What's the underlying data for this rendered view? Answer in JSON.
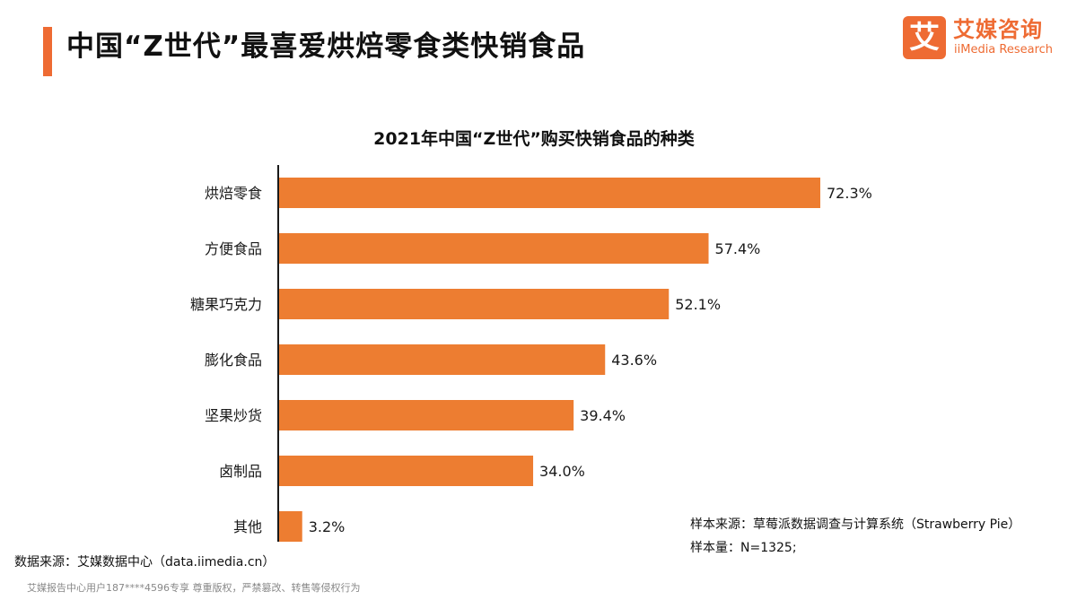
{
  "header": {
    "title": "中国“Z世代”最喜爱烘焙零食类快销食品",
    "logo_mark": "艾",
    "logo_cn": "艾媒咨询",
    "logo_en": "iiMedia Research"
  },
  "colors": {
    "accent": "#EE6B33",
    "bar": "#ED7D31",
    "axis": "#1a1a1a",
    "logo": "#EE6B33"
  },
  "chart_data": {
    "type": "bar",
    "orientation": "horizontal",
    "title": "2021年中国“Z世代”购买快销食品的种类",
    "categories": [
      "烘焙零食",
      "方便食品",
      "糖果巧克力",
      "膨化食品",
      "坚果炒货",
      "卤制品",
      "其他"
    ],
    "values": [
      72.3,
      57.4,
      52.1,
      43.6,
      39.4,
      34.0,
      3.2
    ],
    "value_labels": [
      "72.3%",
      "57.4%",
      "52.1%",
      "43.6%",
      "39.4%",
      "34.0%",
      "3.2%"
    ],
    "unit": "%",
    "xlim": [
      0,
      72.3
    ],
    "xlabel": "",
    "ylabel": "",
    "grid": false,
    "legend": "none"
  },
  "notes": {
    "sample_source": "样本来源：草莓派数据调查与计算系统（Strawberry Pie）",
    "sample_size": "样本量：N=1325;"
  },
  "footer": {
    "data_source": "数据来源：艾媒数据中心（data.iimedia.cn）",
    "copyright": "艾媒报告中心用户187****4596专享 尊重版权，严禁篡改、转售等侵权行为"
  }
}
